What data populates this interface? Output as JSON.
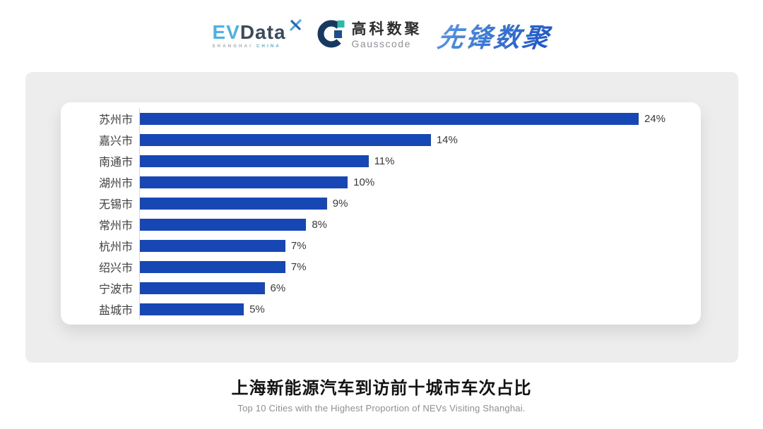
{
  "header": {
    "evdata": {
      "part1": "EV",
      "part2": "Data",
      "sub1": "SHANGHAI",
      "sub2": "CHINA"
    },
    "gausscode": {
      "name_cn": "高科数聚",
      "name_en": "Gausscode"
    },
    "pioneer": {
      "name": "先锋数聚"
    }
  },
  "colors": {
    "bar_blue": "#1747b5",
    "panel_grey": "#ededed",
    "axis_grey": "#d9d9d9",
    "evdata_light_blue": "#4cb1e3",
    "evdata_dark": "#3c4a5d",
    "gausscode_navy": "#17395f",
    "gausscode_teal": "#2bb8ad",
    "pioneer_blue": "#2f6fd6"
  },
  "chart_data": {
    "type": "bar",
    "orientation": "horizontal",
    "categories": [
      "苏州市",
      "嘉兴市",
      "南通市",
      "湖州市",
      "无锡市",
      "常州市",
      "杭州市",
      "绍兴市",
      "宁波市",
      "盐城市"
    ],
    "values": [
      24,
      14,
      11,
      10,
      9,
      8,
      7,
      7,
      6,
      5
    ],
    "value_labels": [
      "24%",
      "14%",
      "11%",
      "10%",
      "9%",
      "8%",
      "7%",
      "7%",
      "6%",
      "5%"
    ],
    "unit": "%",
    "xlim": [
      0,
      24
    ],
    "bar_color": "#1747b5",
    "grid": false,
    "legend": false,
    "title": "上海新能源汽车到访前十城市车次占比",
    "subtitle": "Top 10 Cities with the Highest Proportion of  NEVs Visiting Shanghai."
  }
}
